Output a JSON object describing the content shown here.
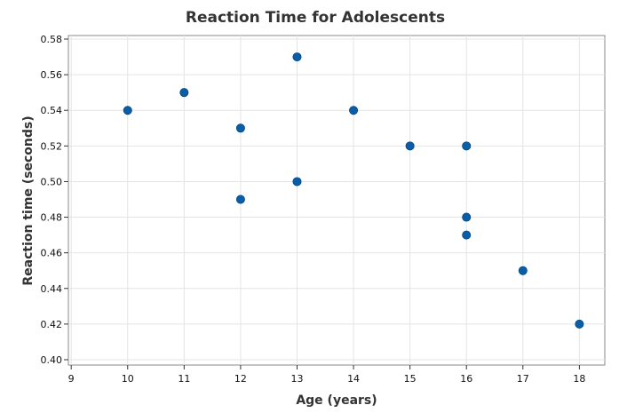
{
  "chart_data": {
    "type": "scatter",
    "title": "Reaction Time for Adolescents",
    "xlabel": "Age (years)",
    "ylabel": "Reaction time (seconds)",
    "xlim": [
      8.95,
      18.45
    ],
    "ylim": [
      0.397,
      0.582
    ],
    "xticks": [
      9,
      10,
      11,
      12,
      13,
      14,
      15,
      16,
      17,
      18
    ],
    "yticks": [
      0.4,
      0.42,
      0.44,
      0.46,
      0.48,
      0.5,
      0.52,
      0.54,
      0.56,
      0.58
    ],
    "ytick_labels": [
      "0.40",
      "0.42",
      "0.44",
      "0.46",
      "0.48",
      "0.50",
      "0.52",
      "0.54",
      "0.56",
      "0.58"
    ],
    "grid": true,
    "marker_color": "#0a5ea8",
    "points": [
      {
        "x": 10,
        "y": 0.54
      },
      {
        "x": 11,
        "y": 0.55
      },
      {
        "x": 12,
        "y": 0.53
      },
      {
        "x": 12,
        "y": 0.49
      },
      {
        "x": 13,
        "y": 0.57
      },
      {
        "x": 13,
        "y": 0.5
      },
      {
        "x": 14,
        "y": 0.54
      },
      {
        "x": 15,
        "y": 0.52
      },
      {
        "x": 16,
        "y": 0.52
      },
      {
        "x": 16,
        "y": 0.48
      },
      {
        "x": 16,
        "y": 0.47
      },
      {
        "x": 17,
        "y": 0.45
      },
      {
        "x": 18,
        "y": 0.42
      }
    ]
  }
}
